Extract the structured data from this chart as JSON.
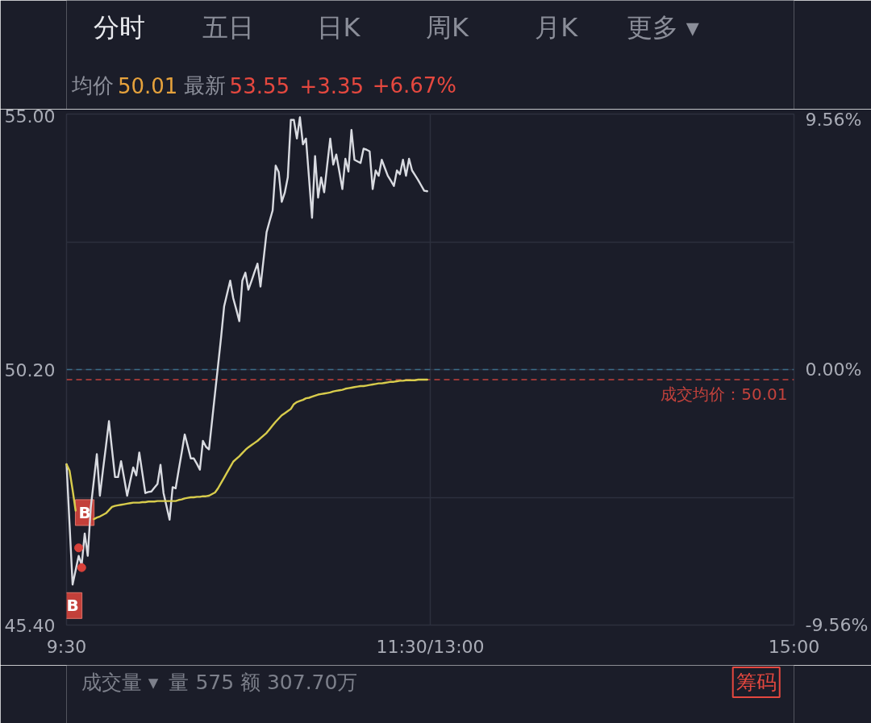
{
  "chart_data": {
    "type": "line",
    "categories": [
      "9:30",
      null,
      null,
      null,
      null,
      null,
      null,
      null,
      null,
      null,
      null,
      null,
      null,
      null,
      null,
      null,
      null,
      null,
      null,
      null,
      null,
      null,
      null,
      null,
      null,
      null,
      null,
      null,
      null,
      null,
      null,
      null,
      null,
      null,
      null,
      null,
      null,
      null,
      null,
      null,
      null,
      null,
      null,
      null,
      null,
      null,
      null,
      null,
      null,
      null,
      null,
      null,
      null,
      null,
      null,
      null,
      null,
      null,
      null,
      null,
      null,
      null,
      null,
      null,
      null,
      null,
      null,
      null,
      null,
      null,
      null,
      null,
      null,
      null,
      null,
      null,
      null,
      null,
      null,
      null,
      null,
      null,
      null,
      null,
      null,
      null,
      null,
      null,
      null,
      null,
      null,
      null,
      null,
      null,
      null,
      null,
      null,
      null,
      null,
      null,
      null,
      null,
      null,
      null,
      null,
      null,
      null,
      null,
      null,
      null,
      null,
      null,
      null,
      null,
      null,
      null,
      null,
      null,
      null,
      null,
      "11:30/13:00",
      null,
      null,
      null,
      null,
      null,
      null,
      null,
      null,
      null,
      null,
      null,
      null,
      null,
      null,
      null,
      null,
      null,
      null,
      null,
      null,
      null,
      null,
      null,
      null,
      null,
      null,
      null,
      null,
      null,
      null,
      null,
      null,
      null,
      null,
      null,
      null,
      null,
      null,
      null,
      null,
      null,
      null,
      null,
      null,
      null,
      null,
      null,
      null,
      null,
      null,
      null,
      null,
      null,
      null,
      null,
      null,
      null,
      null,
      null,
      null,
      null,
      null,
      null,
      null,
      null,
      null,
      null,
      null,
      null,
      null,
      null,
      null,
      null,
      null,
      null,
      null,
      null,
      null,
      null,
      null,
      null,
      null,
      null,
      null,
      null,
      null,
      null,
      null,
      null,
      null,
      null,
      null,
      null,
      null,
      null,
      null,
      null,
      null,
      null,
      null,
      null,
      null,
      null,
      null,
      null,
      null,
      null,
      null,
      null,
      null,
      null,
      null,
      null,
      null,
      null,
      null,
      null,
      null,
      null,
      "15:00"
    ],
    "ylim": [
      45.4,
      55.0
    ],
    "yticks": [
      {
        "value": 55.0,
        "label": "55.00"
      },
      {
        "value": 52.6,
        "label": null
      },
      {
        "value": 50.2,
        "label": "50.20"
      },
      {
        "value": 47.8,
        "label": null
      },
      {
        "value": 45.4,
        "label": "45.40"
      }
    ],
    "y2lim": [
      -9.56,
      9.56
    ],
    "y2ticks": [
      {
        "value": 9.56,
        "label": "9.56%"
      },
      {
        "value": 0,
        "label": "0.00%"
      },
      {
        "value": -9.56,
        "label": "-9.56%"
      }
    ],
    "grid": true,
    "series": [
      {
        "color": "#d9dbe1",
        "values": [
          48.42,
          47.29,
          46.16,
          46.43,
          46.7,
          46.53,
          47.12,
          46.7,
          47.61,
          48.11,
          48.61,
          47.83,
          48.3,
          48.76,
          49.23,
          48.7,
          48.18,
          48.18,
          48.48,
          48.16,
          47.83,
          48.1,
          48.36,
          48.21,
          48.64,
          48.26,
          47.88,
          47.9,
          47.91,
          47.98,
          48.05,
          48.41,
          47.88,
          47.63,
          47.38,
          47.99,
          47.97,
          48.31,
          48.64,
          48.98,
          48.76,
          48.53,
          48.53,
          48.43,
          48.32,
          48.86,
          48.75,
          48.7,
          49.23,
          49.76,
          50.28,
          50.81,
          51.39,
          51.63,
          51.87,
          51.54,
          51.33,
          51.11,
          51.87,
          52.02,
          51.7,
          51.86,
          52.03,
          52.19,
          51.76,
          52.27,
          52.78,
          52.99,
          53.19,
          54.03,
          53.91,
          53.35,
          53.52,
          53.81,
          54.89,
          54.89,
          54.54,
          54.94,
          54.43,
          54.54,
          53.8,
          53.05,
          54.21,
          53.43,
          53.81,
          53.53,
          54.04,
          54.54,
          54.05,
          54.24,
          53.92,
          53.59,
          54.16,
          53.92,
          54.7,
          54.14,
          54.11,
          54.08,
          54.35,
          54.33,
          54.3,
          53.59,
          53.94,
          53.84,
          54.14,
          53.99,
          53.84,
          53.75,
          53.65,
          53.94,
          53.87,
          54.14,
          53.84,
          54.16,
          53.94,
          53.85,
          53.76,
          53.66,
          53.56,
          53.55,
          null,
          null,
          null,
          null,
          null,
          null,
          null,
          null,
          null,
          null,
          null,
          null,
          null,
          null,
          null,
          null,
          null,
          null,
          null,
          null,
          null,
          null,
          null,
          null,
          null,
          null,
          null,
          null,
          null,
          null,
          null,
          null,
          null,
          null,
          null,
          null,
          null,
          null,
          null,
          null,
          null,
          null,
          null,
          null,
          null,
          null,
          null,
          null,
          null,
          null,
          null,
          null,
          null,
          null,
          null,
          null,
          null,
          null,
          null,
          null,
          null,
          null,
          null,
          null,
          null,
          null,
          null,
          null,
          null,
          null,
          null,
          null,
          null,
          null,
          null,
          null,
          null,
          null,
          null,
          null,
          null,
          null,
          null,
          null,
          null,
          null,
          null,
          null,
          null,
          null,
          null,
          null,
          null,
          null,
          null,
          null,
          null,
          null,
          null,
          null,
          null,
          null,
          null,
          null,
          null,
          null,
          null,
          null,
          null,
          null,
          null,
          null,
          null,
          null,
          null,
          null,
          null,
          null,
          null,
          null,
          null
        ]
      },
      {
        "color": "#d8cc4c",
        "values": [
          48.42,
          48.3,
          47.94,
          47.55,
          null,
          null,
          null,
          null,
          null,
          47.39,
          47.42,
          47.44,
          47.47,
          47.5,
          47.56,
          47.62,
          47.64,
          47.65,
          47.66,
          47.67,
          47.68,
          47.69,
          47.7,
          47.7,
          47.7,
          47.71,
          47.71,
          47.72,
          47.72,
          47.72,
          47.73,
          47.73,
          47.73,
          47.73,
          47.73,
          47.73,
          47.73,
          47.75,
          47.76,
          47.78,
          47.79,
          47.8,
          47.8,
          47.81,
          47.81,
          47.82,
          47.82,
          47.83,
          47.86,
          47.89,
          47.97,
          48.07,
          48.17,
          48.27,
          48.37,
          48.47,
          48.52,
          48.57,
          48.63,
          48.69,
          48.74,
          48.78,
          48.82,
          48.86,
          48.91,
          48.96,
          49.01,
          49.08,
          49.15,
          49.22,
          49.28,
          49.34,
          49.38,
          49.42,
          49.46,
          49.55,
          49.59,
          49.61,
          49.63,
          49.66,
          49.67,
          49.69,
          49.71,
          49.73,
          49.74,
          49.75,
          49.76,
          49.77,
          49.79,
          49.8,
          49.81,
          49.82,
          49.84,
          49.85,
          49.86,
          49.87,
          49.88,
          49.89,
          49.89,
          49.9,
          49.91,
          49.92,
          49.93,
          49.94,
          49.94,
          49.95,
          49.96,
          49.97,
          49.97,
          49.98,
          49.99,
          49.99,
          50.0,
          50.0,
          50.0,
          50.0,
          50.01,
          50.01,
          50.01,
          50.01,
          null,
          null,
          null,
          null,
          null,
          null,
          null,
          null,
          null,
          null,
          null,
          null,
          null,
          null,
          null,
          null,
          null,
          null,
          null,
          null,
          null,
          null,
          null,
          null,
          null,
          null,
          null,
          null,
          null,
          null,
          null,
          null,
          null,
          null,
          null,
          null,
          null,
          null,
          null,
          null,
          null,
          null,
          null,
          null,
          null,
          null,
          null,
          null,
          null,
          null,
          null,
          null,
          null,
          null,
          null,
          null,
          null,
          null,
          null,
          null,
          null,
          null,
          null,
          null,
          null,
          null,
          null,
          null,
          null,
          null,
          null,
          null,
          null,
          null,
          null,
          null,
          null,
          null,
          null,
          null,
          null,
          null,
          null,
          null,
          null,
          null,
          null,
          null,
          null,
          null,
          null,
          null,
          null,
          null,
          null,
          null,
          null,
          null,
          null,
          null,
          null,
          null,
          null,
          null,
          null,
          null,
          null,
          null,
          null,
          null,
          null,
          null,
          null,
          null,
          null,
          null,
          null,
          null,
          null,
          null,
          null
        ]
      },
      {
        "type": "scatter",
        "color": "#d8413a",
        "values": [
          null,
          null,
          null,
          null,
          46.85,
          46.48,
          null,
          null,
          null,
          null,
          null,
          null,
          null,
          null,
          null,
          null,
          null,
          null,
          null,
          null,
          null,
          null,
          null,
          null,
          null,
          null,
          null,
          null,
          null,
          null,
          null,
          null,
          null,
          null,
          null,
          null,
          null,
          null,
          null,
          null,
          null,
          null,
          null,
          null,
          null,
          null,
          null,
          null,
          null,
          null,
          null,
          null,
          null,
          null,
          null,
          null,
          null,
          null,
          null,
          null,
          null,
          null,
          null,
          null,
          null,
          null,
          null,
          null,
          null,
          null,
          null,
          null,
          null,
          null,
          null,
          null,
          null,
          null,
          null,
          null,
          null,
          null,
          null,
          null,
          null,
          null,
          null,
          null,
          null,
          null,
          null,
          null,
          null,
          null,
          null,
          null,
          null,
          null,
          null,
          null,
          null,
          null,
          null,
          null,
          null,
          null,
          null,
          null,
          null,
          null,
          null,
          null,
          null,
          null,
          null,
          null,
          null,
          null,
          null,
          null,
          null,
          null,
          null,
          null,
          null,
          null,
          null,
          null,
          null,
          null,
          null,
          null,
          null,
          null,
          null,
          null,
          null,
          null,
          null,
          null,
          null,
          null,
          null,
          null,
          null,
          null,
          null,
          null,
          null,
          null,
          null,
          null,
          null,
          null,
          null,
          null,
          null,
          null,
          null,
          null,
          null,
          null,
          null,
          null,
          null,
          null,
          null,
          null,
          null,
          null,
          null,
          null,
          null,
          null,
          null,
          null,
          null,
          null,
          null,
          null,
          null,
          null,
          null,
          null,
          null,
          null,
          null,
          null,
          null,
          null,
          null,
          null,
          null,
          null,
          null,
          null,
          null,
          null,
          null,
          null,
          null,
          null,
          null,
          null,
          null,
          null,
          null,
          null,
          null,
          null,
          null,
          null,
          null,
          null,
          null,
          null,
          null,
          null,
          null,
          null,
          null,
          null,
          null,
          null,
          null,
          null,
          null,
          null,
          null,
          null,
          null,
          null,
          null,
          null,
          null,
          null,
          null,
          null,
          null,
          null,
          null
        ]
      }
    ],
    "ref_lines": [
      {
        "axis": "y",
        "value": 50.2,
        "color": "#3b6c88",
        "line_style": "dashed"
      },
      {
        "axis": "y",
        "value": 50.01,
        "label": "成交均价：50.01",
        "color": "#c3423c",
        "line_style": "dashed"
      }
    ],
    "annotations": [
      "分时",
      "五日",
      "日K",
      "周K",
      "月K",
      "更多 ▾",
      "均价",
      "50.01",
      "最新",
      "53.55",
      "+3.35",
      "+6.67%",
      "成交量 ▾",
      "量 575",
      "额 307.70万",
      "筹码",
      {
        "text": "B",
        "y": 46.16
      },
      {
        "text": "B",
        "y": 47.12
      }
    ]
  }
}
